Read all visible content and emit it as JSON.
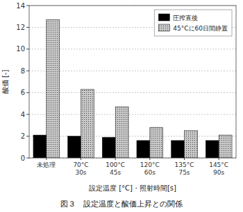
{
  "chart_data": {
    "type": "bar",
    "caption": "図３　設定温度と酸価上昇との関係",
    "xlabel": "設定温度 [°C]・照射時間[s]",
    "ylabel": "酸価 [-]",
    "categories": [
      "未処理",
      "70°C\n30s",
      "100°C\n45s",
      "120°C\n60s",
      "135°C\n75s",
      "145°C\n90s"
    ],
    "series": [
      {
        "name": "圧搾直後",
        "color": "#000000",
        "values": [
          2.1,
          2.0,
          1.9,
          1.6,
          1.6,
          1.6
        ]
      },
      {
        "name": "45°Cに60日間静置",
        "color": "#c8c8c8",
        "values": [
          12.7,
          6.3,
          4.7,
          2.8,
          2.5,
          2.1
        ]
      }
    ],
    "ylim": [
      0,
      14
    ],
    "yticks": [
      0,
      2,
      4,
      6,
      8,
      10,
      12,
      14
    ],
    "grid": true,
    "legend": "upper right"
  }
}
